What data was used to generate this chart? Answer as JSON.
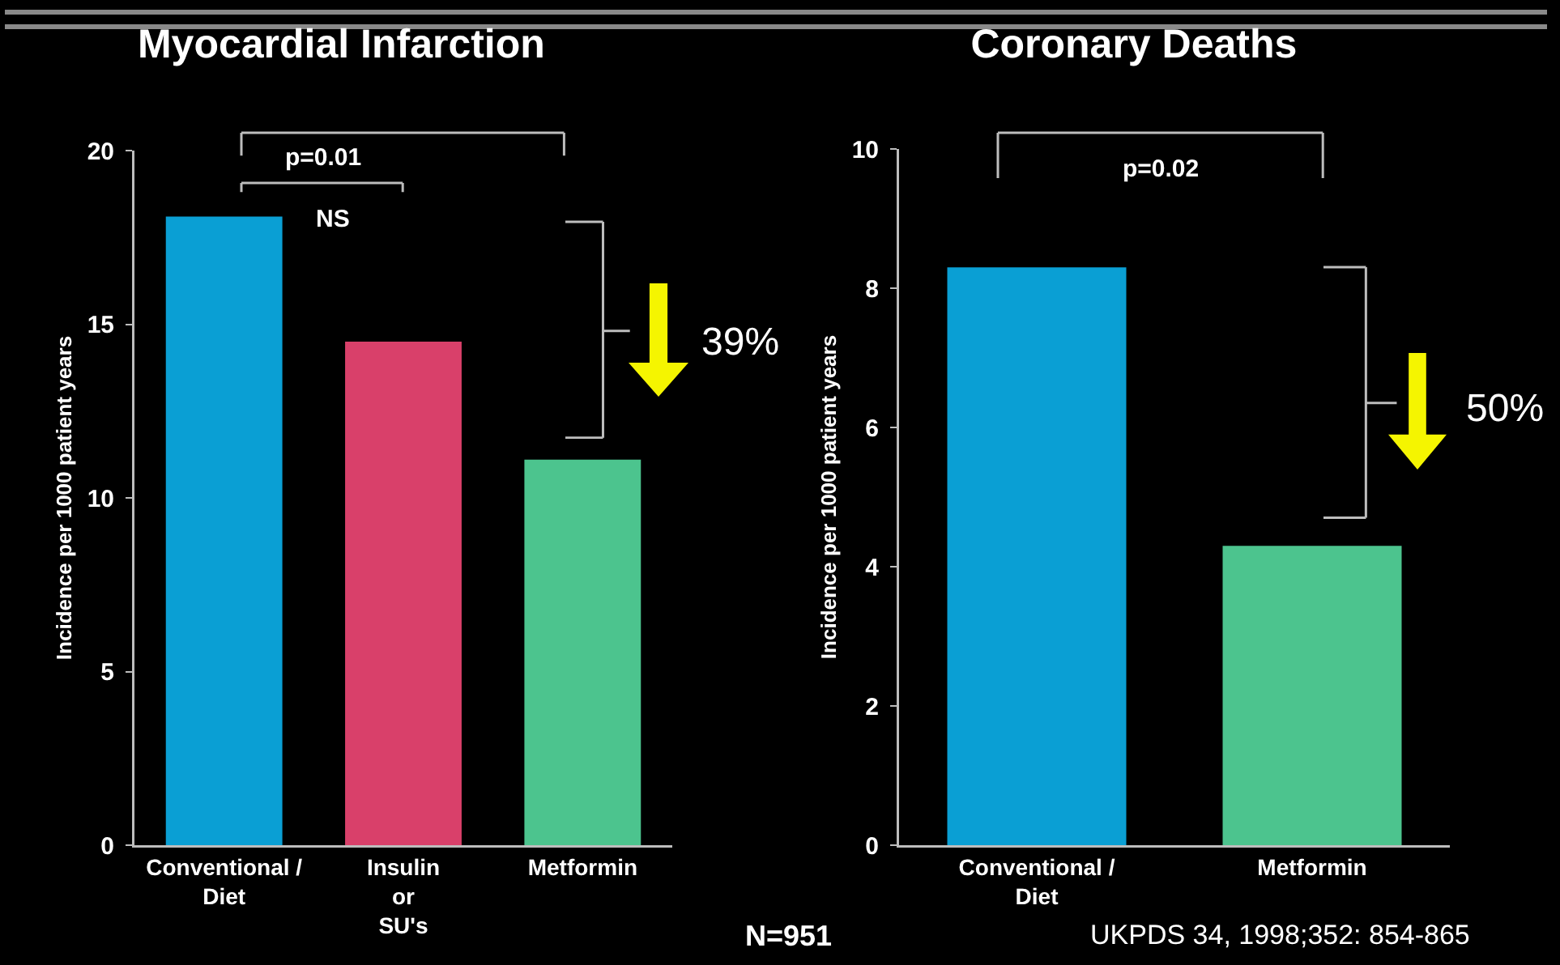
{
  "chart_data": [
    {
      "type": "bar",
      "title": "Myocardial Infarction",
      "ylabel": "Incidence per 1000 patient years",
      "categories": [
        "Conventional /\nDiet",
        "Insulin\nor\nSU's",
        "Metformin"
      ],
      "values": [
        18.1,
        14.5,
        11.1
      ],
      "colors": [
        "#0a9fd4",
        "#d9406a",
        "#4cc48e"
      ],
      "ylim": [
        0,
        20
      ],
      "yticks": [
        0,
        5,
        10,
        15,
        20
      ],
      "annotations": [
        "p=0.01",
        "NS",
        "39%",
        "N=951"
      ]
    },
    {
      "type": "bar",
      "title": "Coronary Deaths",
      "ylabel": "Incidence per 1000 patient years",
      "categories": [
        "Conventional /\nDiet",
        "Metformin"
      ],
      "values": [
        8.3,
        4.3
      ],
      "colors": [
        "#0a9fd4",
        "#4cc48e"
      ],
      "ylim": [
        0,
        10
      ],
      "yticks": [
        0,
        2,
        4,
        6,
        8,
        10
      ],
      "annotations": [
        "p=0.02",
        "50%",
        "UKPDS 34, 1998;352: 854-865"
      ]
    }
  ]
}
